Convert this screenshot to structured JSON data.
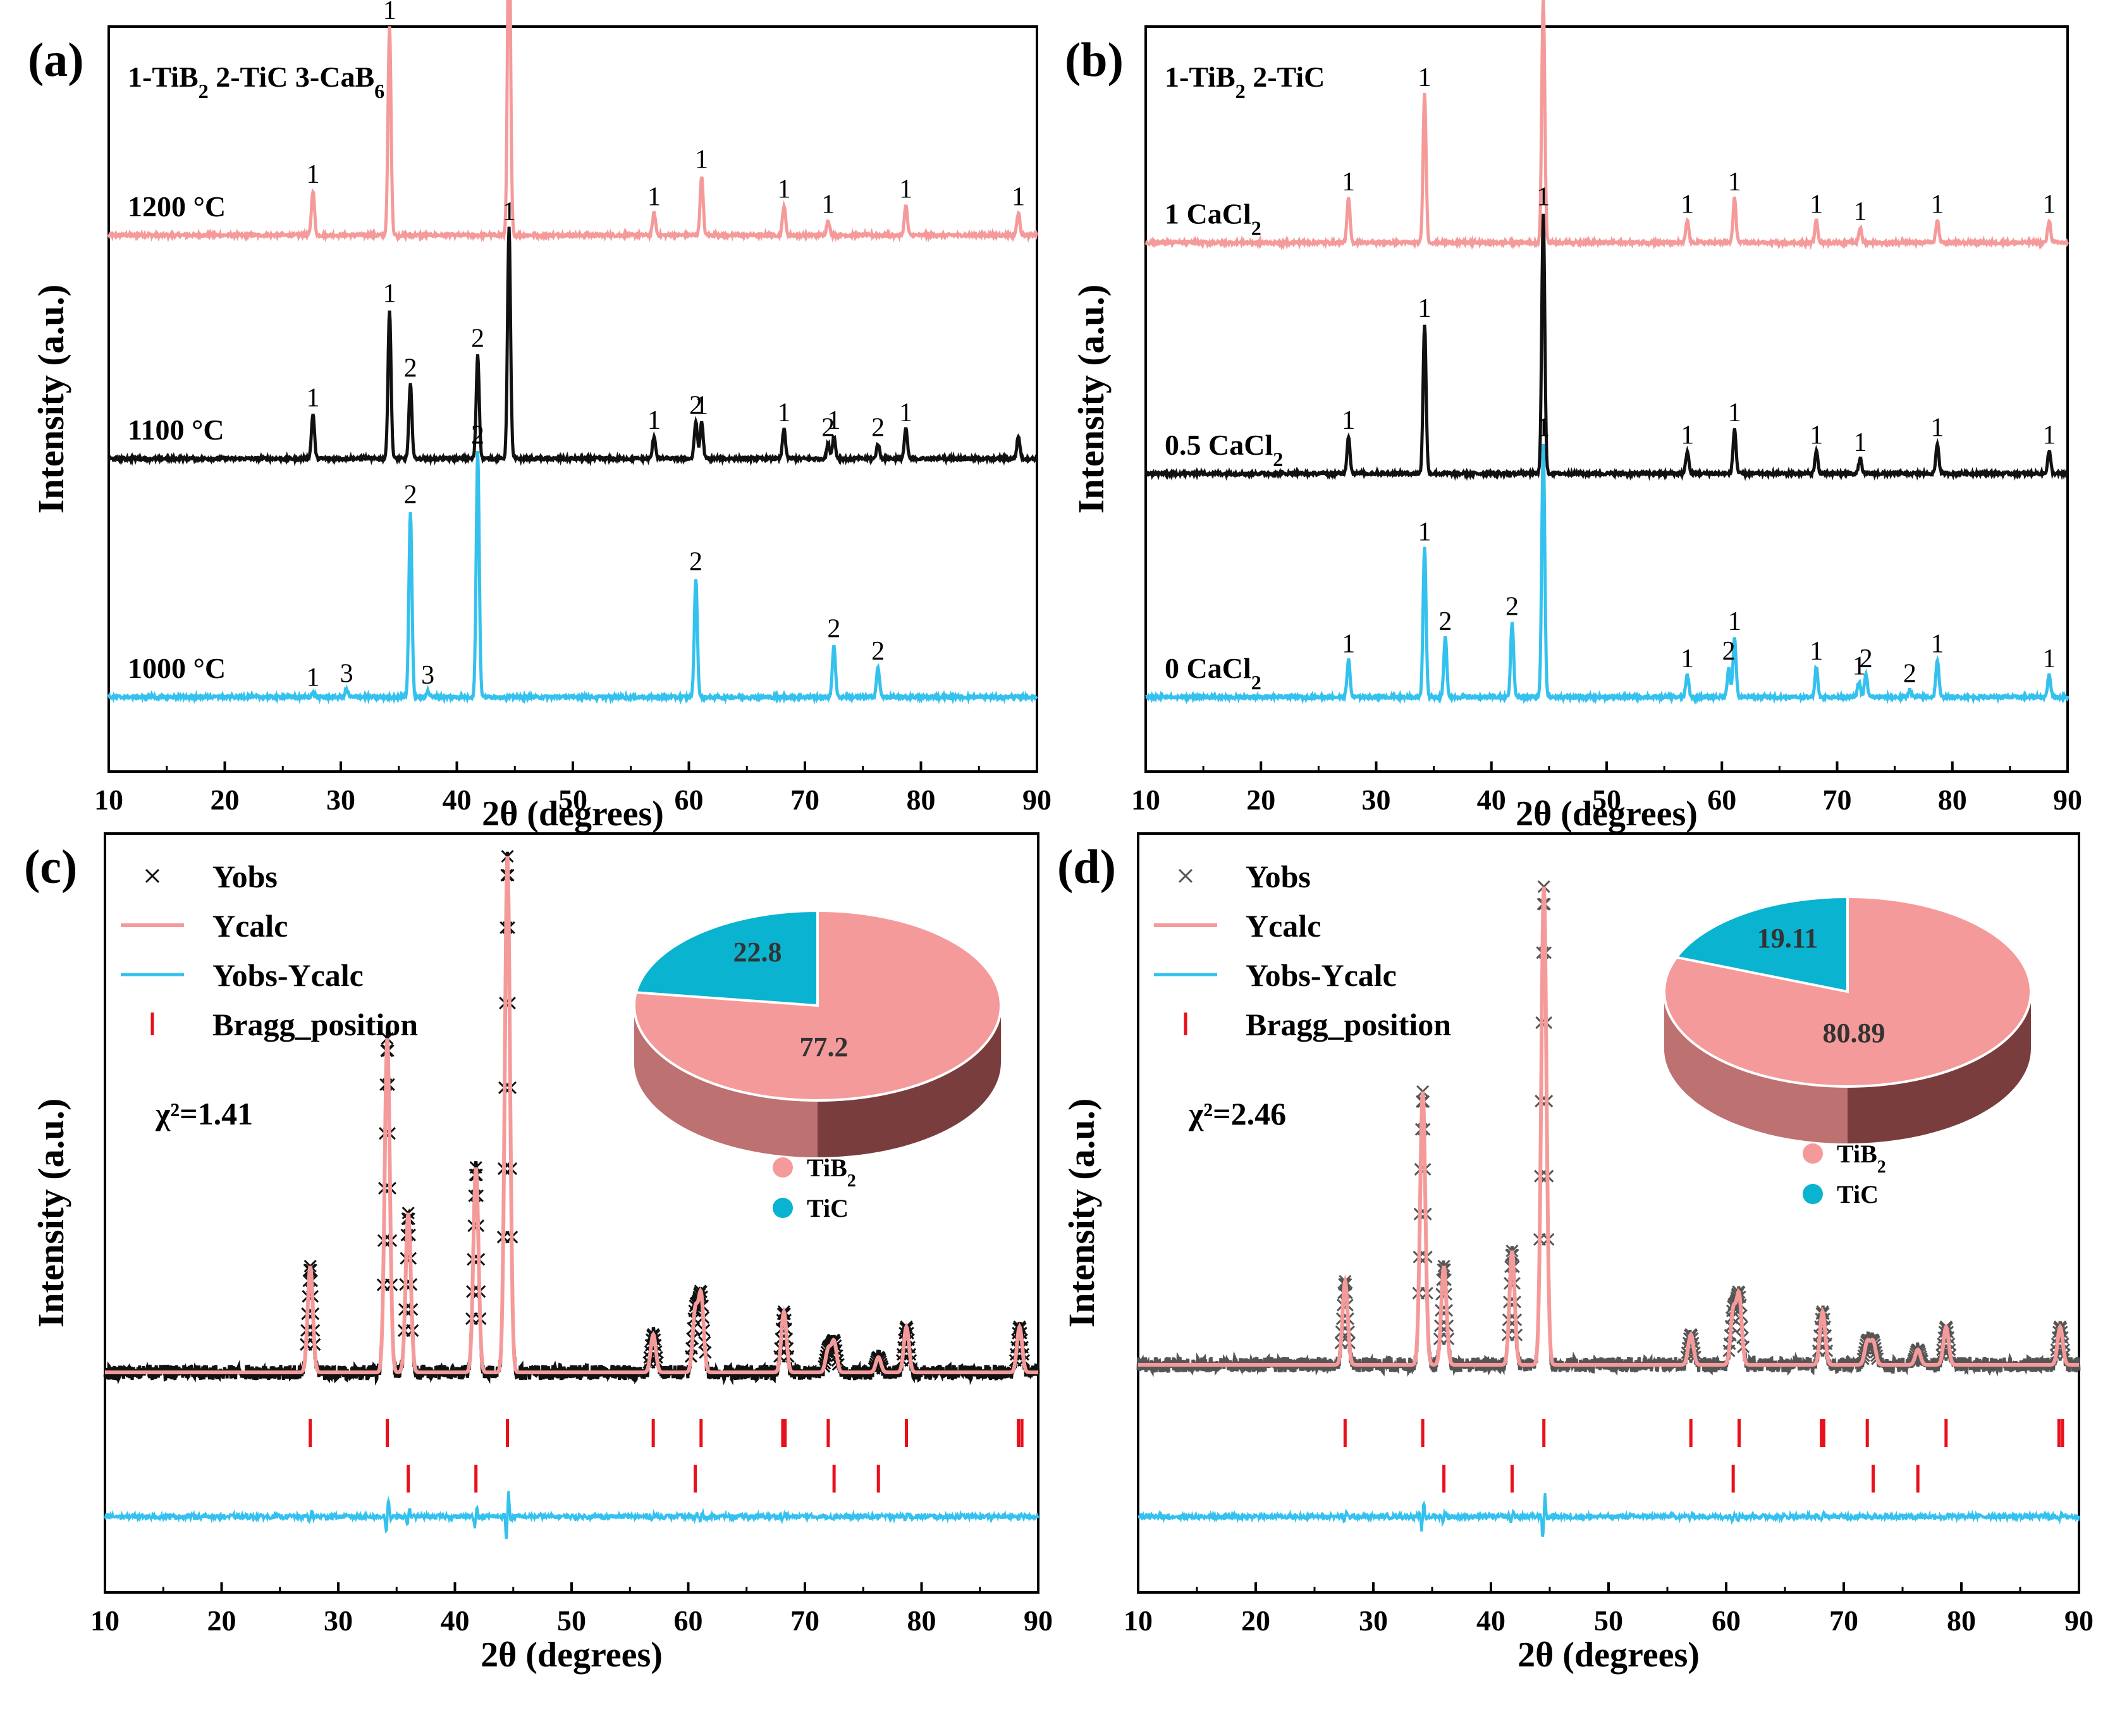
{
  "colors": {
    "pink": "#f59a9a",
    "black": "#111111",
    "cyan": "#34c1ee",
    "bragg": "#e8101a",
    "pie_main": "#f59a9a",
    "pie_minor": "#0ab3cf",
    "pie_side_dark": "#7a3d3d"
  },
  "chart_data": [
    {
      "id": "a",
      "type": "line",
      "panel_label": "(a)",
      "header": "1-TiB₂ 2-TiC 3-CaB₆",
      "xlabel": "2θ (degrees)",
      "ylabel": "Intensity (a.u.)",
      "xlim": [
        10,
        90
      ],
      "x_ticks": [
        10,
        20,
        30,
        40,
        50,
        60,
        70,
        80,
        90
      ],
      "series": [
        {
          "name": "1200 °C",
          "color_key": "pink",
          "baseline": 0.72,
          "peaks": [
            [
              27.6,
              0.06,
              "1"
            ],
            [
              34.2,
              0.28,
              "1"
            ],
            [
              44.5,
              0.45,
              "1"
            ],
            [
              57.0,
              0.03,
              "1"
            ],
            [
              61.1,
              0.08,
              "1"
            ],
            [
              68.2,
              0.04,
              "1"
            ],
            [
              72.0,
              0.02,
              "1"
            ],
            [
              78.7,
              0.04,
              "1"
            ],
            [
              88.4,
              0.03,
              "1"
            ]
          ]
        },
        {
          "name": "1100 °C",
          "color_key": "black",
          "baseline": 0.42,
          "peaks": [
            [
              27.6,
              0.06,
              "1"
            ],
            [
              34.2,
              0.2,
              "1"
            ],
            [
              36.0,
              0.1,
              "2"
            ],
            [
              41.8,
              0.14,
              "2"
            ],
            [
              44.5,
              0.31,
              "1"
            ],
            [
              57.0,
              0.03,
              "1"
            ],
            [
              60.6,
              0.05,
              "2"
            ],
            [
              61.1,
              0.05,
              "1"
            ],
            [
              68.2,
              0.04,
              "1"
            ],
            [
              72.0,
              0.02,
              "2"
            ],
            [
              72.5,
              0.03,
              "1"
            ],
            [
              76.3,
              0.02,
              "2"
            ],
            [
              78.7,
              0.04,
              "1"
            ],
            [
              88.4,
              0.03,
              ""
            ]
          ]
        },
        {
          "name": "1000 °C",
          "color_key": "cyan",
          "baseline": 0.1,
          "peaks": [
            [
              27.6,
              0.005,
              "1"
            ],
            [
              30.5,
              0.01,
              "3"
            ],
            [
              36.0,
              0.25,
              "2"
            ],
            [
              37.5,
              0.008,
              "3"
            ],
            [
              41.8,
              0.33,
              "2"
            ],
            [
              60.6,
              0.16,
              "2"
            ],
            [
              72.5,
              0.07,
              "2"
            ],
            [
              76.3,
              0.04,
              "2"
            ]
          ]
        }
      ]
    },
    {
      "id": "b",
      "type": "line",
      "panel_label": "(b)",
      "header": "1-TiB₂ 2-TiC",
      "xlabel": "2θ (degrees)",
      "ylabel": "Intensity (a.u.)",
      "xlim": [
        10,
        90
      ],
      "x_ticks": [
        10,
        20,
        30,
        40,
        50,
        60,
        70,
        80,
        90
      ],
      "series": [
        {
          "name": "1 CaCl₂",
          "color_key": "pink",
          "baseline": 0.71,
          "peaks": [
            [
              27.6,
              0.06,
              "1"
            ],
            [
              34.2,
              0.2,
              "1"
            ],
            [
              44.5,
              0.33,
              "1"
            ],
            [
              57.0,
              0.03,
              "1"
            ],
            [
              61.1,
              0.06,
              "1"
            ],
            [
              68.2,
              0.03,
              "1"
            ],
            [
              72.0,
              0.02,
              "1"
            ],
            [
              78.7,
              0.03,
              "1"
            ],
            [
              88.4,
              0.03,
              "1"
            ]
          ]
        },
        {
          "name": "0.5 CaCl₂",
          "color_key": "black",
          "baseline": 0.4,
          "peaks": [
            [
              27.6,
              0.05,
              "1"
            ],
            [
              34.2,
              0.2,
              "1"
            ],
            [
              44.5,
              0.35,
              "1"
            ],
            [
              57.0,
              0.03,
              "1"
            ],
            [
              61.1,
              0.06,
              "1"
            ],
            [
              68.2,
              0.03,
              "1"
            ],
            [
              72.0,
              0.02,
              "1"
            ],
            [
              78.7,
              0.04,
              "1"
            ],
            [
              88.4,
              0.03,
              "1"
            ]
          ]
        },
        {
          "name": "0 CaCl₂",
          "color_key": "cyan",
          "baseline": 0.1,
          "peaks": [
            [
              27.6,
              0.05,
              "1"
            ],
            [
              34.2,
              0.2,
              "1"
            ],
            [
              36.0,
              0.08,
              "2"
            ],
            [
              41.8,
              0.1,
              "2"
            ],
            [
              44.5,
              0.34,
              "1"
            ],
            [
              57.0,
              0.03,
              "1"
            ],
            [
              60.6,
              0.04,
              "2"
            ],
            [
              61.1,
              0.08,
              "1"
            ],
            [
              68.2,
              0.04,
              "1"
            ],
            [
              71.9,
              0.02,
              "1"
            ],
            [
              72.5,
              0.03,
              "2"
            ],
            [
              76.3,
              0.01,
              "2"
            ],
            [
              78.7,
              0.05,
              "1"
            ],
            [
              88.4,
              0.03,
              "1"
            ]
          ]
        }
      ]
    },
    {
      "id": "c",
      "type": "line",
      "panel_label": "(c)",
      "xlabel": "2θ (degrees)",
      "ylabel": "Intensity (a.u.)",
      "xlim": [
        10,
        90
      ],
      "x_ticks": [
        10,
        20,
        30,
        40,
        50,
        60,
        70,
        80,
        90
      ],
      "chi_label": "χ²=1.41",
      "legend": [
        "Yobs",
        "Ycalc",
        "Yobs-Ycalc",
        "Bragg_position"
      ],
      "calc_baseline": 0.29,
      "calc_peaks": [
        [
          27.6,
          0.14
        ],
        [
          34.2,
          0.44
        ],
        [
          36.0,
          0.21
        ],
        [
          41.8,
          0.27
        ],
        [
          44.5,
          0.68
        ],
        [
          57.0,
          0.05
        ],
        [
          60.6,
          0.08
        ],
        [
          61.1,
          0.1
        ],
        [
          68.2,
          0.08
        ],
        [
          72.0,
          0.03
        ],
        [
          72.5,
          0.04
        ],
        [
          76.3,
          0.02
        ],
        [
          78.7,
          0.06
        ],
        [
          88.4,
          0.06
        ]
      ],
      "diff_baseline": 0.1,
      "bragg_row1": [
        27.6,
        34.2,
        44.5,
        57.0,
        61.1,
        68.1,
        68.3,
        72.0,
        78.7,
        88.3,
        88.6
      ],
      "bragg_row2": [
        36.0,
        41.8,
        60.6,
        72.5,
        76.3
      ],
      "pie": {
        "values": [
          77.2,
          22.8
        ],
        "labels": [
          "77.2",
          "22.8"
        ],
        "legend": [
          "TiB₂",
          "TiC"
        ]
      }
    },
    {
      "id": "d",
      "type": "line",
      "panel_label": "(d)",
      "xlabel": "2θ (degrees)",
      "ylabel": "Intensity (a.u.)",
      "xlim": [
        10,
        90
      ],
      "x_ticks": [
        10,
        20,
        30,
        40,
        50,
        60,
        70,
        80,
        90
      ],
      "chi_label": "χ²=2.46",
      "legend": [
        "Yobs",
        "Ycalc",
        "Yobs-Ycalc",
        "Bragg_position"
      ],
      "calc_baseline": 0.3,
      "calc_peaks": [
        [
          27.6,
          0.11
        ],
        [
          34.2,
          0.36
        ],
        [
          36.0,
          0.13
        ],
        [
          41.8,
          0.15
        ],
        [
          44.5,
          0.63
        ],
        [
          57.0,
          0.04
        ],
        [
          60.6,
          0.07
        ],
        [
          61.1,
          0.09
        ],
        [
          68.2,
          0.07
        ],
        [
          72.0,
          0.03
        ],
        [
          72.5,
          0.03
        ],
        [
          76.3,
          0.02
        ],
        [
          78.7,
          0.05
        ],
        [
          88.4,
          0.05
        ]
      ],
      "diff_baseline": 0.1,
      "bragg_row1": [
        27.6,
        34.2,
        44.5,
        57.0,
        61.1,
        68.1,
        68.3,
        72.0,
        78.7,
        88.3,
        88.6
      ],
      "bragg_row2": [
        36.0,
        41.8,
        60.6,
        72.5,
        76.3
      ],
      "pie": {
        "values": [
          80.89,
          19.11
        ],
        "labels": [
          "80.89",
          "19.11"
        ],
        "legend": [
          "TiB₂",
          "TiC"
        ]
      }
    }
  ]
}
